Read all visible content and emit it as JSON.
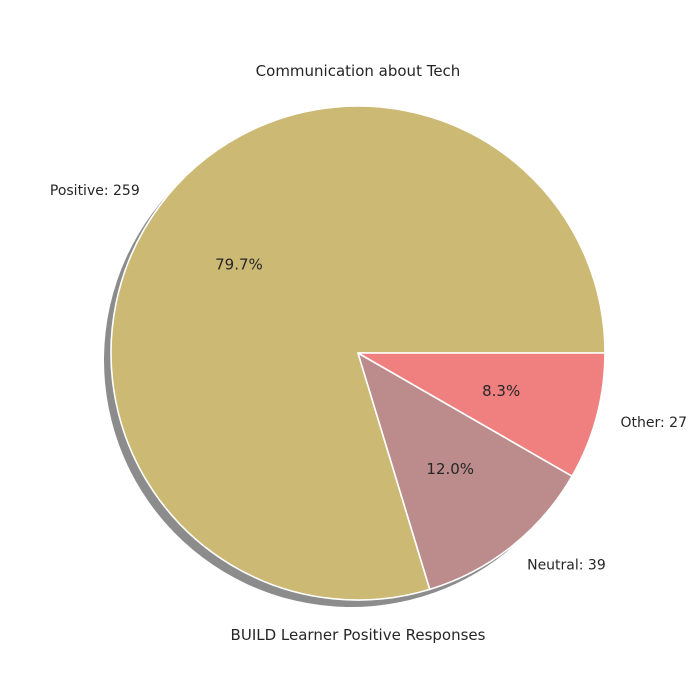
{
  "chart_data": {
    "type": "pie",
    "title": "Communication about Tech",
    "xlabel": "BUILD Learner Positive Responses",
    "categories": [
      "Positive",
      "Neutral",
      "Other"
    ],
    "values": [
      259,
      39,
      27
    ],
    "labels": [
      "Positive: 259",
      "Neutral: 39",
      "Other: 27"
    ],
    "percent_labels": [
      "79.7%",
      "12.0%",
      "8.3%"
    ],
    "colors": [
      "#ccb974",
      "#bc8c8c",
      "#f08080"
    ],
    "shadow": true,
    "start_angle_deg": 0,
    "direction": "counterclockwise"
  }
}
